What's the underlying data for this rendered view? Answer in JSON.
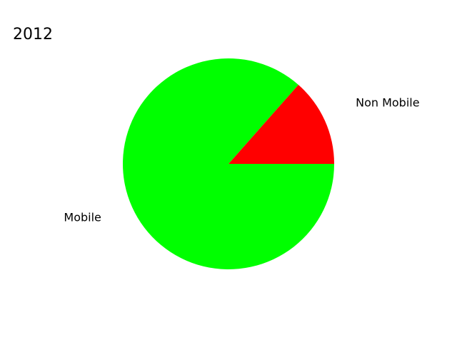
{
  "chart_data": {
    "type": "pie",
    "title": "2012",
    "slices": [
      {
        "label": "Non Mobile",
        "value": 13.5,
        "color": "#ff0000"
      },
      {
        "label": "Mobile",
        "value": 86.5,
        "color": "#00ff00"
      }
    ],
    "legend": "none"
  }
}
